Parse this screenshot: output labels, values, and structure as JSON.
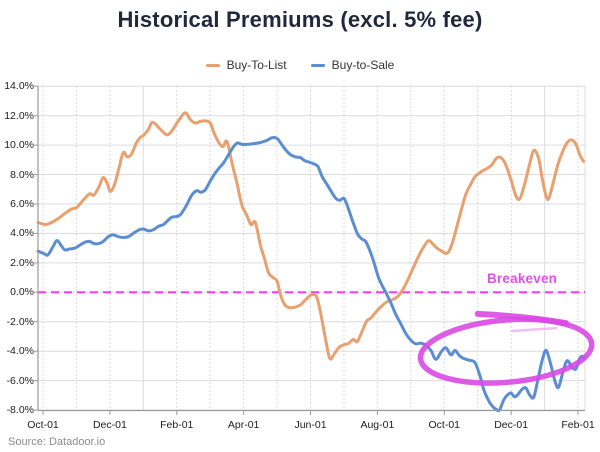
{
  "title": "Historical Premiums (excl. 5% fee)",
  "source_note": "Source: Datadoor.io",
  "legend": [
    {
      "label": "Buy-To-List",
      "color": "#e8a06f"
    },
    {
      "label": "Buy-to-Sale",
      "color": "#5b8dd2"
    }
  ],
  "colors": {
    "title": "#20293c",
    "buy_to_list": "#e8a06f",
    "buy_to_sale": "#5b8dd2",
    "breakeven_line": "#f23ff2",
    "breakeven_text": "#e14fef",
    "annotation_ellipse": "#d949e3",
    "annotation_streak": "#f0aaee",
    "grid_major": "#dcdcdc",
    "grid_minor": "#cfcfcf",
    "axis": "#9a9a9a",
    "tick_text": "#1c1c1c"
  },
  "chart_data": {
    "type": "line",
    "title": "Historical Premiums (excl. 5% fee)",
    "x_unit": "months since first Oct-01",
    "x_tick_labels": [
      "Oct-01",
      "Dec-01",
      "Feb-01",
      "Apr-01",
      "Jun-01",
      "Aug-01",
      "Oct-01",
      "Dec-01",
      "Feb-01"
    ],
    "x_tick_months": [
      0,
      2,
      4,
      6,
      8,
      10,
      12,
      14,
      16
    ],
    "x_solid_grid_months": [
      3,
      15
    ],
    "x_minor_grid": "monthly dotted",
    "y_tick_labels": [
      "14.0%",
      "12.0%",
      "10.0%",
      "8.0%",
      "6.0%",
      "4.0%",
      "2.0%",
      "0.0%",
      "-2.0%",
      "-4.0%",
      "-6.0%",
      "-8.0%"
    ],
    "y_tick_values": [
      14,
      12,
      10,
      8,
      6,
      4,
      2,
      0,
      -2,
      -4,
      -6,
      -8
    ],
    "ylim": [
      -8,
      14
    ],
    "legend_position": "top-center",
    "series": [
      {
        "name": "Buy-To-List",
        "color": "#e8a06f",
        "points": [
          [
            -0.15,
            4.75
          ],
          [
            0.05,
            4.6
          ],
          [
            0.2,
            4.68
          ],
          [
            0.45,
            5.0
          ],
          [
            0.65,
            5.35
          ],
          [
            0.85,
            5.65
          ],
          [
            1.0,
            5.75
          ],
          [
            1.12,
            6.05
          ],
          [
            1.28,
            6.45
          ],
          [
            1.4,
            6.7
          ],
          [
            1.52,
            6.6
          ],
          [
            1.68,
            7.2
          ],
          [
            1.8,
            7.8
          ],
          [
            1.92,
            7.4
          ],
          [
            2.02,
            6.85
          ],
          [
            2.15,
            7.4
          ],
          [
            2.28,
            8.5
          ],
          [
            2.4,
            9.5
          ],
          [
            2.52,
            9.2
          ],
          [
            2.65,
            9.4
          ],
          [
            2.78,
            10.1
          ],
          [
            2.9,
            10.5
          ],
          [
            3.0,
            10.65
          ],
          [
            3.15,
            11.05
          ],
          [
            3.28,
            11.55
          ],
          [
            3.5,
            11.1
          ],
          [
            3.7,
            10.7
          ],
          [
            3.85,
            10.95
          ],
          [
            4.05,
            11.65
          ],
          [
            4.25,
            12.2
          ],
          [
            4.4,
            11.75
          ],
          [
            4.55,
            11.5
          ],
          [
            4.7,
            11.6
          ],
          [
            4.85,
            11.65
          ],
          [
            5.0,
            11.5
          ],
          [
            5.12,
            10.8
          ],
          [
            5.25,
            10.2
          ],
          [
            5.38,
            9.9
          ],
          [
            5.5,
            10.25
          ],
          [
            5.65,
            8.8
          ],
          [
            5.8,
            7.4
          ],
          [
            5.95,
            5.9
          ],
          [
            6.08,
            5.3
          ],
          [
            6.22,
            4.6
          ],
          [
            6.35,
            4.75
          ],
          [
            6.5,
            3.2
          ],
          [
            6.62,
            2.3
          ],
          [
            6.75,
            1.3
          ],
          [
            6.88,
            1.0
          ],
          [
            7.0,
            0.75
          ],
          [
            7.12,
            -0.3
          ],
          [
            7.25,
            -0.9
          ],
          [
            7.4,
            -1.05
          ],
          [
            7.55,
            -1.0
          ],
          [
            7.7,
            -0.85
          ],
          [
            7.85,
            -0.5
          ],
          [
            8.0,
            -0.2
          ],
          [
            8.1,
            -0.15
          ],
          [
            8.2,
            -0.4
          ],
          [
            8.32,
            -1.6
          ],
          [
            8.45,
            -3.2
          ],
          [
            8.58,
            -4.5
          ],
          [
            8.72,
            -4.15
          ],
          [
            8.85,
            -3.75
          ],
          [
            9.0,
            -3.55
          ],
          [
            9.12,
            -3.5
          ],
          [
            9.28,
            -3.2
          ],
          [
            9.4,
            -3.35
          ],
          [
            9.55,
            -2.6
          ],
          [
            9.68,
            -1.95
          ],
          [
            9.8,
            -1.75
          ],
          [
            9.95,
            -1.35
          ],
          [
            10.1,
            -1.0
          ],
          [
            10.28,
            -0.65
          ],
          [
            10.45,
            -0.5
          ],
          [
            10.6,
            -0.3
          ],
          [
            10.75,
            0.15
          ],
          [
            10.9,
            0.8
          ],
          [
            11.05,
            1.55
          ],
          [
            11.2,
            2.3
          ],
          [
            11.35,
            2.95
          ],
          [
            11.52,
            3.5
          ],
          [
            11.65,
            3.3
          ],
          [
            11.78,
            3.0
          ],
          [
            11.92,
            2.8
          ],
          [
            12.08,
            2.65
          ],
          [
            12.22,
            3.2
          ],
          [
            12.38,
            4.5
          ],
          [
            12.52,
            5.7
          ],
          [
            12.65,
            6.7
          ],
          [
            12.78,
            7.3
          ],
          [
            12.92,
            7.85
          ],
          [
            13.08,
            8.15
          ],
          [
            13.22,
            8.35
          ],
          [
            13.4,
            8.6
          ],
          [
            13.58,
            9.15
          ],
          [
            13.72,
            9.1
          ],
          [
            13.85,
            8.6
          ],
          [
            14.0,
            7.6
          ],
          [
            14.15,
            6.5
          ],
          [
            14.27,
            6.4
          ],
          [
            14.42,
            7.5
          ],
          [
            14.55,
            8.7
          ],
          [
            14.68,
            9.65
          ],
          [
            14.82,
            9.1
          ],
          [
            14.93,
            7.7
          ],
          [
            15.05,
            6.5
          ],
          [
            15.13,
            6.4
          ],
          [
            15.27,
            7.55
          ],
          [
            15.4,
            8.7
          ],
          [
            15.53,
            9.5
          ],
          [
            15.67,
            10.15
          ],
          [
            15.8,
            10.35
          ],
          [
            15.93,
            10.1
          ],
          [
            16.05,
            9.35
          ],
          [
            16.16,
            8.9
          ]
        ]
      },
      {
        "name": "Buy-to-Sale",
        "color": "#5b8dd2",
        "points": [
          [
            -0.15,
            2.8
          ],
          [
            0.05,
            2.6
          ],
          [
            0.15,
            2.55
          ],
          [
            0.3,
            3.1
          ],
          [
            0.42,
            3.52
          ],
          [
            0.55,
            3.15
          ],
          [
            0.66,
            2.88
          ],
          [
            0.8,
            2.95
          ],
          [
            0.95,
            3.0
          ],
          [
            1.1,
            3.2
          ],
          [
            1.25,
            3.4
          ],
          [
            1.4,
            3.45
          ],
          [
            1.5,
            3.33
          ],
          [
            1.65,
            3.3
          ],
          [
            1.8,
            3.45
          ],
          [
            1.95,
            3.78
          ],
          [
            2.1,
            3.9
          ],
          [
            2.25,
            3.78
          ],
          [
            2.4,
            3.72
          ],
          [
            2.55,
            3.78
          ],
          [
            2.7,
            4.0
          ],
          [
            2.85,
            4.22
          ],
          [
            3.0,
            4.3
          ],
          [
            3.15,
            4.18
          ],
          [
            3.3,
            4.25
          ],
          [
            3.45,
            4.48
          ],
          [
            3.6,
            4.6
          ],
          [
            3.72,
            4.85
          ],
          [
            3.85,
            5.1
          ],
          [
            4.0,
            5.15
          ],
          [
            4.12,
            5.3
          ],
          [
            4.3,
            5.95
          ],
          [
            4.45,
            6.6
          ],
          [
            4.6,
            6.9
          ],
          [
            4.72,
            6.8
          ],
          [
            4.85,
            6.95
          ],
          [
            5.0,
            7.55
          ],
          [
            5.12,
            8.0
          ],
          [
            5.25,
            8.4
          ],
          [
            5.4,
            8.8
          ],
          [
            5.55,
            9.35
          ],
          [
            5.7,
            9.9
          ],
          [
            5.82,
            10.15
          ],
          [
            5.95,
            10.05
          ],
          [
            6.1,
            10.05
          ],
          [
            6.3,
            10.1
          ],
          [
            6.5,
            10.18
          ],
          [
            6.7,
            10.32
          ],
          [
            6.85,
            10.5
          ],
          [
            7.0,
            10.45
          ],
          [
            7.12,
            10.1
          ],
          [
            7.25,
            9.7
          ],
          [
            7.4,
            9.35
          ],
          [
            7.55,
            9.2
          ],
          [
            7.7,
            9.15
          ],
          [
            7.82,
            8.95
          ],
          [
            7.95,
            8.85
          ],
          [
            8.1,
            8.72
          ],
          [
            8.22,
            8.55
          ],
          [
            8.35,
            7.85
          ],
          [
            8.5,
            7.3
          ],
          [
            8.62,
            6.85
          ],
          [
            8.75,
            6.4
          ],
          [
            8.88,
            6.25
          ],
          [
            9.0,
            6.38
          ],
          [
            9.12,
            5.75
          ],
          [
            9.25,
            4.9
          ],
          [
            9.4,
            4.0
          ],
          [
            9.52,
            3.65
          ],
          [
            9.65,
            3.45
          ],
          [
            9.78,
            2.8
          ],
          [
            9.9,
            2.0
          ],
          [
            10.05,
            0.9
          ],
          [
            10.26,
            -0.05
          ],
          [
            10.4,
            -0.7
          ],
          [
            10.55,
            -1.5
          ],
          [
            10.7,
            -2.15
          ],
          [
            10.85,
            -2.8
          ],
          [
            11.0,
            -3.25
          ],
          [
            11.15,
            -3.5
          ],
          [
            11.3,
            -3.45
          ],
          [
            11.45,
            -3.6
          ],
          [
            11.6,
            -3.95
          ],
          [
            11.75,
            -4.55
          ],
          [
            11.92,
            -4.0
          ],
          [
            12.05,
            -3.78
          ],
          [
            12.2,
            -4.25
          ],
          [
            12.32,
            -3.95
          ],
          [
            12.45,
            -4.3
          ],
          [
            12.58,
            -4.5
          ],
          [
            12.75,
            -4.62
          ],
          [
            12.92,
            -4.78
          ],
          [
            13.07,
            -5.7
          ],
          [
            13.18,
            -6.6
          ],
          [
            13.3,
            -7.25
          ],
          [
            13.42,
            -7.7
          ],
          [
            13.55,
            -7.95
          ],
          [
            13.65,
            -8.0
          ],
          [
            13.78,
            -7.3
          ],
          [
            13.9,
            -6.95
          ],
          [
            14.0,
            -6.85
          ],
          [
            14.1,
            -7.1
          ],
          [
            14.2,
            -6.95
          ],
          [
            14.32,
            -6.6
          ],
          [
            14.44,
            -6.5
          ],
          [
            14.56,
            -7.0
          ],
          [
            14.68,
            -7.1
          ],
          [
            14.82,
            -5.7
          ],
          [
            14.93,
            -4.6
          ],
          [
            15.05,
            -3.95
          ],
          [
            15.2,
            -5.05
          ],
          [
            15.32,
            -6.1
          ],
          [
            15.42,
            -6.45
          ],
          [
            15.56,
            -5.3
          ],
          [
            15.68,
            -4.65
          ],
          [
            15.82,
            -5.1
          ],
          [
            15.94,
            -5.2
          ],
          [
            16.05,
            -4.5
          ],
          [
            16.12,
            -4.35
          ],
          [
            16.2,
            -4.5
          ]
        ]
      }
    ],
    "annotations": {
      "breakeven": {
        "label": "Breakeven",
        "y_value": 0,
        "line_style": "dashed",
        "line_color": "#f23ff2",
        "label_color": "#e14fef"
      },
      "ellipse": {
        "description": "hand-drawn ellipse circling Buy-to-Sale staying below breakeven (Oct to Feb, about -3% to -7%)",
        "center": [
          13.85,
          -4.0
        ],
        "rx_months": 2.57,
        "ry_percent": 2.11,
        "rotation_deg": -5,
        "color": "#d949e3",
        "stroke_width": 5.5,
        "tail": {
          "from": [
            13.0,
            -1.47
          ],
          "ctrl": [
            14.35,
            -1.61
          ],
          "to": [
            15.64,
            -2.09
          ]
        },
        "streak": {
          "from": [
            14.02,
            -2.63
          ],
          "to": [
            15.34,
            -2.43
          ],
          "color": "#f0aaee"
        }
      }
    }
  }
}
